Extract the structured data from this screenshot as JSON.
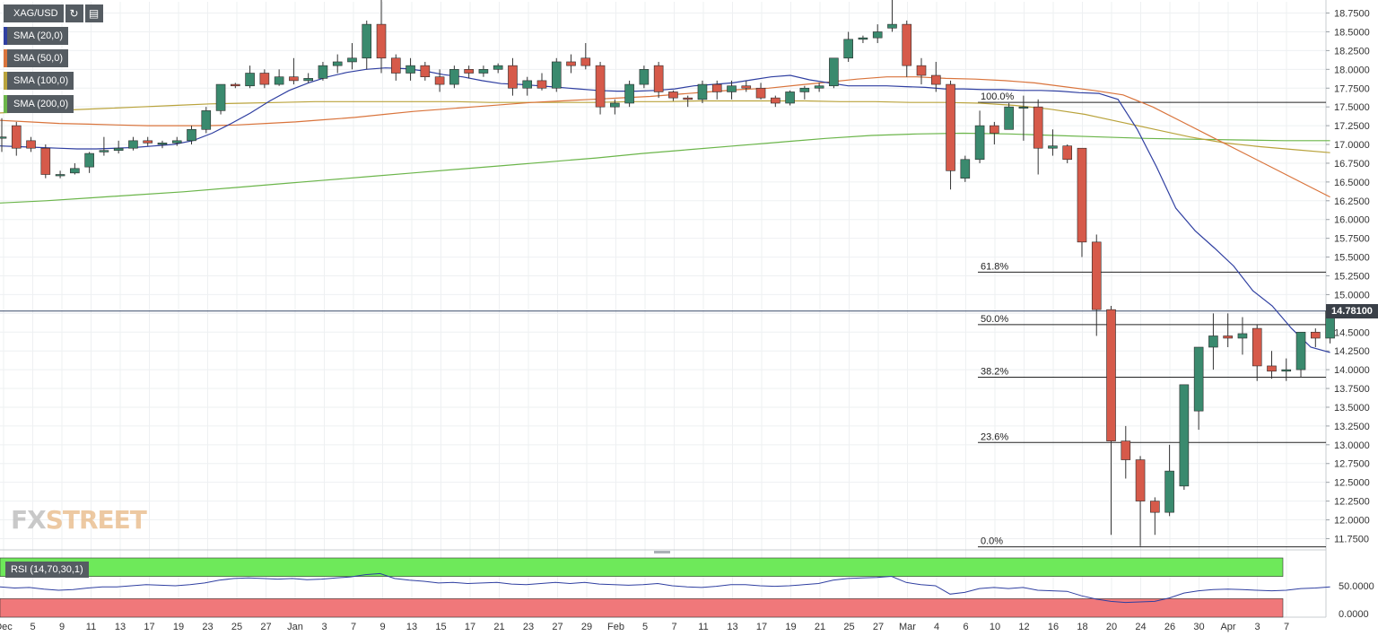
{
  "toolbar": {
    "symbol": "XAG/USD",
    "refresh_icon": "refresh-icon",
    "settings_icon": "chart-settings-icon",
    "indicators": [
      {
        "label": "SMA (20,0)",
        "color": "#2f3fa1"
      },
      {
        "label": "SMA (50,0)",
        "color": "#d9743c"
      },
      {
        "label": "SMA (100,0)",
        "color": "#b9a33c"
      },
      {
        "label": "SMA (200,0)",
        "color": "#6bb54a"
      }
    ]
  },
  "watermark": {
    "part1": "FX",
    "part2": "STREET"
  },
  "rsi_label": "RSI (14,70,30,1)",
  "current_price": "14.78100",
  "chart_data": {
    "type": "candlestick",
    "title": "",
    "price_axis": {
      "min": 11.6,
      "max": 18.9,
      "ticks": [
        "18.7500",
        "18.5000",
        "18.2500",
        "18.0000",
        "17.7500",
        "17.5000",
        "17.2500",
        "17.0000",
        "16.7500",
        "16.5000",
        "16.2500",
        "16.0000",
        "15.7500",
        "15.5000",
        "15.2500",
        "15.0000",
        "14.7500",
        "14.5000",
        "14.2500",
        "14.0000",
        "13.7500",
        "13.5000",
        "13.2500",
        "13.0000",
        "12.7500",
        "12.5000",
        "12.2500",
        "12.0000",
        "11.7500"
      ]
    },
    "x_ticks": [
      "Dec",
      "5",
      "9",
      "11",
      "13",
      "17",
      "19",
      "23",
      "25",
      "27",
      "Jan",
      "3",
      "7",
      "9",
      "13",
      "15",
      "17",
      "21",
      "23",
      "27",
      "29",
      "Feb",
      "5",
      "7",
      "11",
      "13",
      "17",
      "19",
      "21",
      "25",
      "27",
      "Mar",
      "4",
      "6",
      "10",
      "12",
      "16",
      "18",
      "20",
      "24",
      "26",
      "30",
      "Apr",
      "3",
      "7"
    ],
    "candles": [
      {
        "o": 17.1,
        "h": 17.35,
        "l": 16.9,
        "c": 17.1
      },
      {
        "o": 17.25,
        "h": 17.3,
        "l": 16.85,
        "c": 16.95
      },
      {
        "o": 17.05,
        "h": 17.1,
        "l": 16.9,
        "c": 16.95
      },
      {
        "o": 16.95,
        "h": 17.0,
        "l": 16.55,
        "c": 16.6
      },
      {
        "o": 16.6,
        "h": 16.65,
        "l": 16.55,
        "c": 16.6
      },
      {
        "o": 16.62,
        "h": 16.75,
        "l": 16.6,
        "c": 16.68
      },
      {
        "o": 16.7,
        "h": 16.9,
        "l": 16.62,
        "c": 16.88
      },
      {
        "o": 16.9,
        "h": 17.1,
        "l": 16.85,
        "c": 16.92
      },
      {
        "o": 16.92,
        "h": 17.05,
        "l": 16.88,
        "c": 16.95
      },
      {
        "o": 16.95,
        "h": 17.1,
        "l": 16.92,
        "c": 17.05
      },
      {
        "o": 17.05,
        "h": 17.1,
        "l": 16.98,
        "c": 17.02
      },
      {
        "o": 17.0,
        "h": 17.05,
        "l": 16.95,
        "c": 17.02
      },
      {
        "o": 17.02,
        "h": 17.1,
        "l": 16.98,
        "c": 17.05
      },
      {
        "o": 17.05,
        "h": 17.25,
        "l": 17.0,
        "c": 17.2
      },
      {
        "o": 17.2,
        "h": 17.5,
        "l": 17.15,
        "c": 17.45
      },
      {
        "o": 17.45,
        "h": 17.8,
        "l": 17.4,
        "c": 17.8
      },
      {
        "o": 17.8,
        "h": 17.82,
        "l": 17.75,
        "c": 17.78
      },
      {
        "o": 17.78,
        "h": 18.05,
        "l": 17.75,
        "c": 17.95
      },
      {
        "o": 17.95,
        "h": 18.0,
        "l": 17.75,
        "c": 17.8
      },
      {
        "o": 17.8,
        "h": 18.0,
        "l": 17.78,
        "c": 17.9
      },
      {
        "o": 17.9,
        "h": 18.15,
        "l": 17.8,
        "c": 17.85
      },
      {
        "o": 17.85,
        "h": 17.95,
        "l": 17.82,
        "c": 17.88
      },
      {
        "o": 17.88,
        "h": 18.1,
        "l": 17.85,
        "c": 18.05
      },
      {
        "o": 18.05,
        "h": 18.2,
        "l": 17.95,
        "c": 18.1
      },
      {
        "o": 18.1,
        "h": 18.35,
        "l": 18.0,
        "c": 18.15
      },
      {
        "o": 18.15,
        "h": 18.65,
        "l": 18.0,
        "c": 18.6
      },
      {
        "o": 18.6,
        "h": 18.95,
        "l": 17.95,
        "c": 18.15
      },
      {
        "o": 18.15,
        "h": 18.2,
        "l": 17.85,
        "c": 17.95
      },
      {
        "o": 17.95,
        "h": 18.15,
        "l": 17.85,
        "c": 18.05
      },
      {
        "o": 18.05,
        "h": 18.1,
        "l": 17.85,
        "c": 17.9
      },
      {
        "o": 17.9,
        "h": 18.0,
        "l": 17.7,
        "c": 17.8
      },
      {
        "o": 17.8,
        "h": 18.05,
        "l": 17.75,
        "c": 18.0
      },
      {
        "o": 18.0,
        "h": 18.05,
        "l": 17.88,
        "c": 17.95
      },
      {
        "o": 17.95,
        "h": 18.05,
        "l": 17.9,
        "c": 18.0
      },
      {
        "o": 18.0,
        "h": 18.08,
        "l": 17.95,
        "c": 18.05
      },
      {
        "o": 18.05,
        "h": 18.15,
        "l": 17.65,
        "c": 17.75
      },
      {
        "o": 17.75,
        "h": 17.9,
        "l": 17.65,
        "c": 17.85
      },
      {
        "o": 17.85,
        "h": 17.95,
        "l": 17.72,
        "c": 17.75
      },
      {
        "o": 17.75,
        "h": 18.15,
        "l": 17.7,
        "c": 18.1
      },
      {
        "o": 18.1,
        "h": 18.2,
        "l": 17.95,
        "c": 18.05
      },
      {
        "o": 18.15,
        "h": 18.35,
        "l": 18.0,
        "c": 18.05
      },
      {
        "o": 18.05,
        "h": 18.1,
        "l": 17.4,
        "c": 17.5
      },
      {
        "o": 17.5,
        "h": 17.6,
        "l": 17.4,
        "c": 17.55
      },
      {
        "o": 17.55,
        "h": 17.85,
        "l": 17.5,
        "c": 17.8
      },
      {
        "o": 17.8,
        "h": 18.05,
        "l": 17.75,
        "c": 18.0
      },
      {
        "o": 18.05,
        "h": 18.1,
        "l": 17.62,
        "c": 17.7
      },
      {
        "o": 17.7,
        "h": 17.72,
        "l": 17.58,
        "c": 17.62
      },
      {
        "o": 17.62,
        "h": 17.65,
        "l": 17.5,
        "c": 17.6
      },
      {
        "o": 17.6,
        "h": 17.85,
        "l": 17.55,
        "c": 17.8
      },
      {
        "o": 17.8,
        "h": 17.85,
        "l": 17.6,
        "c": 17.7
      },
      {
        "o": 17.7,
        "h": 17.85,
        "l": 17.6,
        "c": 17.78
      },
      {
        "o": 17.78,
        "h": 17.85,
        "l": 17.7,
        "c": 17.75
      },
      {
        "o": 17.75,
        "h": 17.82,
        "l": 17.6,
        "c": 17.62
      },
      {
        "o": 17.62,
        "h": 17.65,
        "l": 17.5,
        "c": 17.55
      },
      {
        "o": 17.55,
        "h": 17.72,
        "l": 17.52,
        "c": 17.7
      },
      {
        "o": 17.7,
        "h": 17.78,
        "l": 17.6,
        "c": 17.75
      },
      {
        "o": 17.75,
        "h": 17.82,
        "l": 17.7,
        "c": 17.78
      },
      {
        "o": 17.78,
        "h": 18.15,
        "l": 17.75,
        "c": 18.15
      },
      {
        "o": 18.15,
        "h": 18.5,
        "l": 18.1,
        "c": 18.4
      },
      {
        "o": 18.4,
        "h": 18.45,
        "l": 18.35,
        "c": 18.42
      },
      {
        "o": 18.42,
        "h": 18.6,
        "l": 18.35,
        "c": 18.5
      },
      {
        "o": 18.55,
        "h": 18.95,
        "l": 18.5,
        "c": 18.6
      },
      {
        "o": 18.6,
        "h": 18.65,
        "l": 17.9,
        "c": 18.05
      },
      {
        "o": 18.05,
        "h": 18.15,
        "l": 17.8,
        "c": 17.92
      },
      {
        "o": 17.92,
        "h": 18.1,
        "l": 17.7,
        "c": 17.8
      },
      {
        "o": 17.8,
        "h": 17.85,
        "l": 16.4,
        "c": 16.65
      },
      {
        "o": 16.55,
        "h": 16.85,
        "l": 16.5,
        "c": 16.8
      },
      {
        "o": 16.8,
        "h": 17.45,
        "l": 16.75,
        "c": 17.25
      },
      {
        "o": 17.25,
        "h": 17.3,
        "l": 17.0,
        "c": 17.15
      },
      {
        "o": 17.2,
        "h": 17.55,
        "l": 17.2,
        "c": 17.5
      },
      {
        "o": 17.5,
        "h": 17.65,
        "l": 17.05,
        "c": 17.5
      },
      {
        "o": 17.5,
        "h": 17.6,
        "l": 16.6,
        "c": 16.95
      },
      {
        "o": 16.95,
        "h": 17.2,
        "l": 16.85,
        "c": 16.98
      },
      {
        "o": 16.98,
        "h": 17.0,
        "l": 16.75,
        "c": 16.8
      },
      {
        "o": 16.95,
        "h": 16.95,
        "l": 15.5,
        "c": 15.7
      },
      {
        "o": 15.7,
        "h": 15.8,
        "l": 14.45,
        "c": 14.8
      },
      {
        "o": 14.8,
        "h": 14.85,
        "l": 11.8,
        "c": 13.05
      },
      {
        "o": 13.05,
        "h": 13.25,
        "l": 12.55,
        "c": 12.8
      },
      {
        "o": 12.8,
        "h": 12.85,
        "l": 11.65,
        "c": 12.25
      },
      {
        "o": 12.25,
        "h": 12.3,
        "l": 11.8,
        "c": 12.1
      },
      {
        "o": 12.1,
        "h": 13.0,
        "l": 12.05,
        "c": 12.65
      },
      {
        "o": 12.45,
        "h": 13.8,
        "l": 12.4,
        "c": 13.8
      },
      {
        "o": 13.45,
        "h": 14.3,
        "l": 13.2,
        "c": 14.3
      },
      {
        "o": 14.3,
        "h": 14.75,
        "l": 14.0,
        "c": 14.45
      },
      {
        "o": 14.45,
        "h": 14.75,
        "l": 14.3,
        "c": 14.42
      },
      {
        "o": 14.42,
        "h": 14.7,
        "l": 14.2,
        "c": 14.48
      },
      {
        "o": 14.55,
        "h": 14.6,
        "l": 13.85,
        "c": 14.05
      },
      {
        "o": 14.05,
        "h": 14.25,
        "l": 13.88,
        "c": 13.98
      },
      {
        "o": 13.98,
        "h": 14.15,
        "l": 13.85,
        "c": 14.0
      },
      {
        "o": 14.0,
        "h": 14.5,
        "l": 13.9,
        "c": 14.5
      },
      {
        "o": 14.5,
        "h": 14.55,
        "l": 14.3,
        "c": 14.42
      },
      {
        "o": 14.42,
        "h": 14.81,
        "l": 14.35,
        "c": 14.781
      }
    ],
    "sma20": [
      16.98,
      16.97,
      16.96,
      16.95,
      16.94,
      16.94,
      16.95,
      16.96,
      16.98,
      17.0,
      17.05,
      17.15,
      17.28,
      17.42,
      17.58,
      17.72,
      17.82,
      17.9,
      17.96,
      18.0,
      18.02,
      18.01,
      17.98,
      17.93,
      17.9,
      17.85,
      17.81,
      17.8,
      17.78,
      17.76,
      17.74,
      17.72,
      17.71,
      17.71,
      17.72,
      17.74,
      17.78,
      17.8,
      17.82,
      17.86,
      17.9,
      17.92,
      17.86,
      17.82,
      17.78,
      17.78,
      17.78,
      17.77,
      17.76,
      17.74,
      17.74,
      17.73,
      17.73,
      17.72,
      17.72,
      17.71,
      17.69,
      17.68,
      17.6,
      17.2,
      16.7,
      16.15,
      15.85,
      15.62,
      15.38,
      15.05,
      14.85,
      14.55,
      14.3,
      14.23
    ],
    "sma50": [
      17.32,
      17.3,
      17.28,
      17.27,
      17.26,
      17.25,
      17.25,
      17.25,
      17.26,
      17.28,
      17.3,
      17.33,
      17.36,
      17.4,
      17.44,
      17.47,
      17.5,
      17.53,
      17.56,
      17.58,
      17.6,
      17.62,
      17.64,
      17.67,
      17.7,
      17.73,
      17.75,
      17.79,
      17.83,
      17.87,
      17.9,
      17.9,
      17.88,
      17.87,
      17.85,
      17.82,
      17.77,
      17.72,
      17.66,
      17.5,
      17.3,
      17.1,
      16.9,
      16.7,
      16.5,
      16.3
    ],
    "sma100": [
      17.42,
      17.44,
      17.46,
      17.48,
      17.5,
      17.52,
      17.54,
      17.55,
      17.56,
      17.57,
      17.57,
      17.57,
      17.57,
      17.57,
      17.56,
      17.56,
      17.56,
      17.56,
      17.57,
      17.57,
      17.58,
      17.58,
      17.58,
      17.58,
      17.57,
      17.57,
      17.56,
      17.56,
      17.55,
      17.52,
      17.47,
      17.4,
      17.3,
      17.2,
      17.1,
      17.02,
      16.97,
      16.93,
      16.89
    ],
    "sma200": [
      16.22,
      16.25,
      16.29,
      16.33,
      16.37,
      16.42,
      16.47,
      16.52,
      16.57,
      16.62,
      16.67,
      16.72,
      16.77,
      16.82,
      16.88,
      16.93,
      16.98,
      17.03,
      17.08,
      17.12,
      17.14,
      17.15,
      17.14,
      17.12,
      17.1,
      17.08,
      17.07,
      17.06,
      17.05,
      17.05
    ],
    "fib_levels": [
      {
        "label": "100.0%",
        "value": 17.56
      },
      {
        "label": "61.8%",
        "value": 15.3
      },
      {
        "label": "50.0%",
        "value": 14.6
      },
      {
        "label": "38.2%",
        "value": 13.9
      },
      {
        "label": "23.6%",
        "value": 13.03
      },
      {
        "label": "0.0%",
        "value": 11.64
      }
    ],
    "last_price": 14.781,
    "rsi": {
      "axis_ticks": [
        "50.0000",
        "0.0000"
      ],
      "overbought": 70,
      "oversold": 30,
      "values": [
        48,
        46,
        47,
        44,
        42,
        43,
        46,
        48,
        48,
        50,
        52,
        51,
        50,
        52,
        55,
        60,
        63,
        64,
        63,
        62,
        63,
        61,
        62,
        64,
        66,
        70,
        72,
        63,
        60,
        58,
        55,
        56,
        54,
        55,
        56,
        53,
        52,
        54,
        56,
        54,
        56,
        53,
        52,
        51,
        52,
        54,
        50,
        48,
        47,
        49,
        52,
        52,
        50,
        49,
        50,
        52,
        54,
        60,
        63,
        64,
        65,
        67,
        56,
        52,
        50,
        35,
        38,
        45,
        47,
        45,
        47,
        42,
        41,
        40,
        32,
        26,
        22,
        20,
        21,
        22,
        28,
        37,
        41,
        43,
        44,
        43,
        42,
        41,
        42,
        45,
        46,
        48
      ]
    }
  }
}
